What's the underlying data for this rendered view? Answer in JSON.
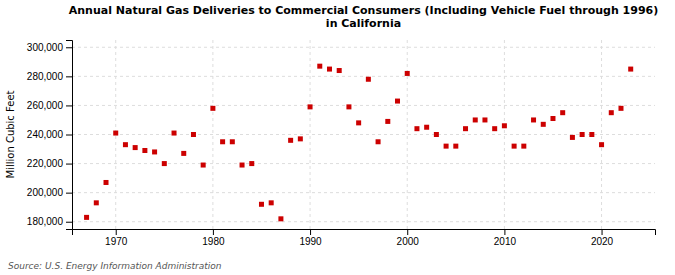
{
  "chart_data": {
    "type": "scatter",
    "title": "Annual Natural Gas Deliveries to Commercial Consumers (Including Vehicle Fuel through 1996)\nin California",
    "ylabel": "Million Cubic Feet",
    "source": "Source: U.S. Energy Information Administration",
    "color": "#cc0000",
    "marker": "square",
    "grid": true,
    "x": [
      1967,
      1968,
      1969,
      1970,
      1971,
      1972,
      1973,
      1974,
      1975,
      1976,
      1977,
      1978,
      1979,
      1980,
      1981,
      1982,
      1983,
      1984,
      1985,
      1986,
      1987,
      1988,
      1989,
      1990,
      1991,
      1992,
      1993,
      1994,
      1995,
      1996,
      1997,
      1998,
      1999,
      2000,
      2001,
      2002,
      2003,
      2004,
      2005,
      2006,
      2007,
      2008,
      2009,
      2010,
      2011,
      2012,
      2013,
      2014,
      2015,
      2016,
      2017,
      2018,
      2019,
      2020,
      2021,
      2022,
      2023
    ],
    "values": [
      183000,
      193000,
      207000,
      241000,
      233000,
      231000,
      229000,
      228000,
      220000,
      241000,
      227000,
      240000,
      219000,
      258000,
      235000,
      235000,
      219000,
      220000,
      192000,
      193000,
      182000,
      236000,
      237000,
      259000,
      287000,
      285000,
      284000,
      259000,
      248000,
      278000,
      235000,
      249000,
      263000,
      282000,
      244000,
      245000,
      240000,
      232000,
      232000,
      244000,
      250000,
      250000,
      244000,
      246000,
      232000,
      232000,
      250000,
      247000,
      251000,
      255000,
      238000,
      240000,
      240000,
      233000,
      255000,
      258000,
      285000
    ],
    "xlim": [
      1965.5,
      2025.5
    ],
    "ylim": [
      175000,
      305000
    ],
    "xticks": [
      1970,
      1980,
      1990,
      2000,
      2010,
      2020
    ],
    "yticks": [
      {
        "value": 180000,
        "label": "180,000"
      },
      {
        "value": 200000,
        "label": "200,000"
      },
      {
        "value": 220000,
        "label": "220,000"
      },
      {
        "value": 240000,
        "label": "240,000"
      },
      {
        "value": 260000,
        "label": "260,000"
      },
      {
        "value": 280000,
        "label": "280,000"
      },
      {
        "value": 300000,
        "label": "300,000"
      }
    ]
  }
}
